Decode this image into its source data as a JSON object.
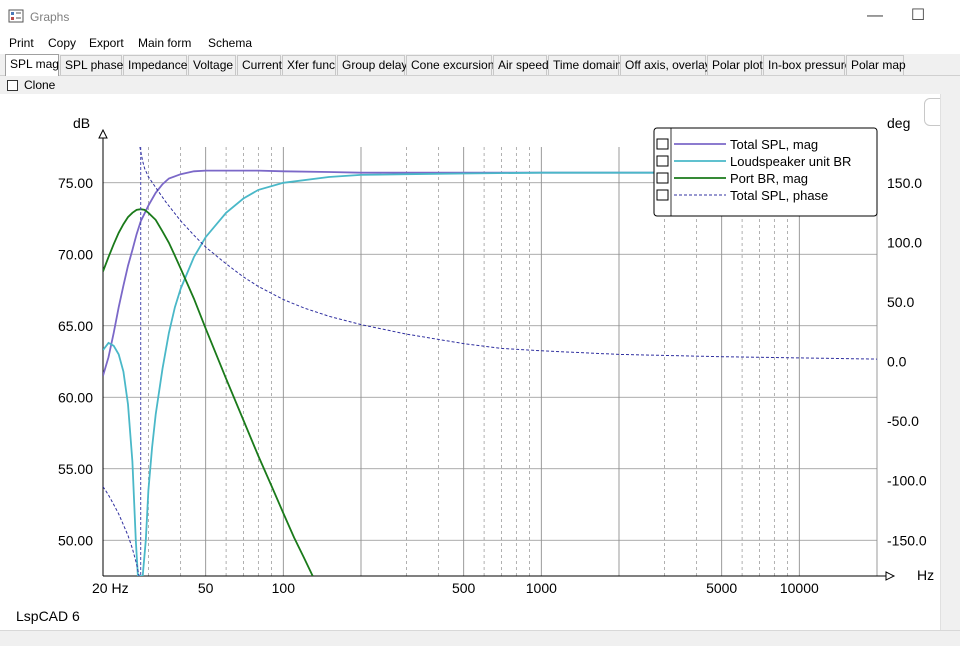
{
  "window": {
    "title": "Graphs",
    "minimize_glyph": "—",
    "maximize_glyph": "☐"
  },
  "menu": [
    "Print",
    "Copy",
    "Export",
    "Main form",
    "Schema"
  ],
  "tabs": [
    {
      "label": "SPL mag",
      "active": true
    },
    {
      "label": "SPL phase"
    },
    {
      "label": "Impedance"
    },
    {
      "label": "Voltage"
    },
    {
      "label": "Current"
    },
    {
      "label": "Xfer func"
    },
    {
      "label": "Group delay"
    },
    {
      "label": "Cone excursion"
    },
    {
      "label": "Air speed"
    },
    {
      "label": "Time domain"
    },
    {
      "label": "Off axis, overlay"
    },
    {
      "label": "Polar plot"
    },
    {
      "label": "In-box pressure"
    },
    {
      "label": "Polar map"
    }
  ],
  "clone": {
    "label": "Clone",
    "checked": false
  },
  "footer": "LspCAD 6",
  "chart_data": {
    "type": "line",
    "x_scale": "log",
    "xlim": [
      20,
      20000
    ],
    "ylim_left": [
      47.5,
      77.5
    ],
    "ylim_right": [
      -180,
      180
    ],
    "x_ticks": [
      {
        "v": 20,
        "label": "20 Hz"
      },
      {
        "v": 50,
        "label": "50"
      },
      {
        "v": 100,
        "label": "100"
      },
      {
        "v": 500,
        "label": "500"
      },
      {
        "v": 1000,
        "label": "1000"
      },
      {
        "v": 5000,
        "label": "5000"
      },
      {
        "v": 10000,
        "label": "10000"
      }
    ],
    "x_unit": "Hz",
    "y_left_unit": "dB",
    "y_right_unit": "deg",
    "y_left_ticks": [
      "75.00",
      "70.00",
      "65.00",
      "60.00",
      "55.00",
      "50.00"
    ],
    "y_left_tick_values": [
      75,
      70,
      65,
      60,
      55,
      50
    ],
    "y_right_ticks": [
      "150.0",
      "100.0",
      "50.0",
      "0.0",
      "-50.0",
      "-100.0",
      "-150.0"
    ],
    "y_right_tick_values": [
      150,
      100,
      50,
      0,
      -50,
      -100,
      -150
    ],
    "grid": true,
    "legend_position": "top-right",
    "colors": {
      "total_spl": "#7b68c8",
      "loudspeaker": "#4ab8c8",
      "port": "#1a7a1a",
      "phase": "#3030a0",
      "grid": "#909090",
      "marker": "#4a4ab0"
    },
    "series": [
      {
        "name": "Total SPL, mag",
        "axis": "left",
        "style": "solid",
        "color": "#7b68c8",
        "points": [
          [
            20,
            61.5
          ],
          [
            21,
            62.8
          ],
          [
            22,
            64.5
          ],
          [
            23,
            66.3
          ],
          [
            24,
            67.8
          ],
          [
            25,
            69.2
          ],
          [
            26,
            70.3
          ],
          [
            27,
            71.4
          ],
          [
            28,
            72.3
          ],
          [
            30,
            73.4
          ],
          [
            32,
            74.3
          ],
          [
            34,
            74.9
          ],
          [
            36,
            75.3
          ],
          [
            40,
            75.6
          ],
          [
            45,
            75.8
          ],
          [
            50,
            75.85
          ],
          [
            60,
            75.85
          ],
          [
            80,
            75.85
          ],
          [
            100,
            75.8
          ],
          [
            150,
            75.75
          ],
          [
            200,
            75.7
          ],
          [
            500,
            75.7
          ],
          [
            1000,
            75.7
          ],
          [
            2000,
            75.7
          ],
          [
            5000,
            75.7
          ],
          [
            10000,
            75.7
          ],
          [
            20000,
            75.7
          ]
        ]
      },
      {
        "name": "Loudspeaker unit BR",
        "axis": "left",
        "style": "solid",
        "color": "#4ab8c8",
        "points": [
          [
            20,
            63.3
          ],
          [
            21,
            63.8
          ],
          [
            22,
            63.6
          ],
          [
            23,
            63.0
          ],
          [
            24,
            61.8
          ],
          [
            25,
            59.5
          ],
          [
            26,
            55.5
          ],
          [
            26.8,
            50.0
          ],
          [
            27.3,
            47.5
          ],
          [
            28.5,
            47.5
          ],
          [
            29.3,
            50.0
          ],
          [
            30,
            53.5
          ],
          [
            31,
            56.5
          ],
          [
            32,
            58.8
          ],
          [
            34,
            62.0
          ],
          [
            36,
            64.5
          ],
          [
            38,
            66.3
          ],
          [
            40,
            67.6
          ],
          [
            45,
            69.8
          ],
          [
            50,
            71.2
          ],
          [
            60,
            72.9
          ],
          [
            70,
            73.9
          ],
          [
            80,
            74.5
          ],
          [
            100,
            75.0
          ],
          [
            150,
            75.4
          ],
          [
            200,
            75.55
          ],
          [
            300,
            75.6
          ],
          [
            500,
            75.65
          ],
          [
            1000,
            75.7
          ],
          [
            2000,
            75.7
          ],
          [
            5000,
            75.7
          ],
          [
            20000,
            75.7
          ]
        ]
      },
      {
        "name": "Port BR, mag",
        "axis": "left",
        "style": "solid",
        "color": "#1a7a1a",
        "points": [
          [
            20,
            68.8
          ],
          [
            21,
            69.8
          ],
          [
            22,
            70.7
          ],
          [
            23,
            71.5
          ],
          [
            24,
            72.1
          ],
          [
            25,
            72.6
          ],
          [
            26,
            72.9
          ],
          [
            27,
            73.1
          ],
          [
            28,
            73.15
          ],
          [
            29,
            73.1
          ],
          [
            30,
            72.9
          ],
          [
            32,
            72.4
          ],
          [
            34,
            71.6
          ],
          [
            36,
            70.8
          ],
          [
            38,
            69.9
          ],
          [
            40,
            69.0
          ],
          [
            45,
            66.9
          ],
          [
            50,
            64.8
          ],
          [
            60,
            61.3
          ],
          [
            70,
            58.4
          ],
          [
            80,
            55.9
          ],
          [
            90,
            53.8
          ],
          [
            100,
            51.9
          ],
          [
            110,
            50.2
          ],
          [
            120,
            48.8
          ],
          [
            130,
            47.5
          ]
        ]
      },
      {
        "name": "Total SPL, phase",
        "axis": "right",
        "style": "dashed",
        "color": "#3030a0",
        "points": [
          [
            20,
            -105
          ],
          [
            21,
            -112
          ],
          [
            22,
            -120
          ],
          [
            23,
            -128
          ],
          [
            24,
            -137
          ],
          [
            25,
            -146
          ],
          [
            26,
            -157
          ],
          [
            27,
            -170
          ],
          [
            27.6,
            -180
          ],
          [
            27.8,
            180
          ],
          [
            28.5,
            168
          ],
          [
            29,
            162
          ],
          [
            30,
            155
          ],
          [
            32,
            146
          ],
          [
            35,
            134
          ],
          [
            40,
            118
          ],
          [
            45,
            106
          ],
          [
            50,
            96
          ],
          [
            60,
            82
          ],
          [
            70,
            71
          ],
          [
            80,
            63
          ],
          [
            100,
            52
          ],
          [
            120,
            45
          ],
          [
            150,
            38
          ],
          [
            200,
            31
          ],
          [
            300,
            23
          ],
          [
            500,
            15
          ],
          [
            700,
            11
          ],
          [
            1000,
            9
          ],
          [
            2000,
            6
          ],
          [
            5000,
            4
          ],
          [
            10000,
            3
          ],
          [
            20000,
            2
          ]
        ]
      }
    ],
    "marker_x": 28
  }
}
